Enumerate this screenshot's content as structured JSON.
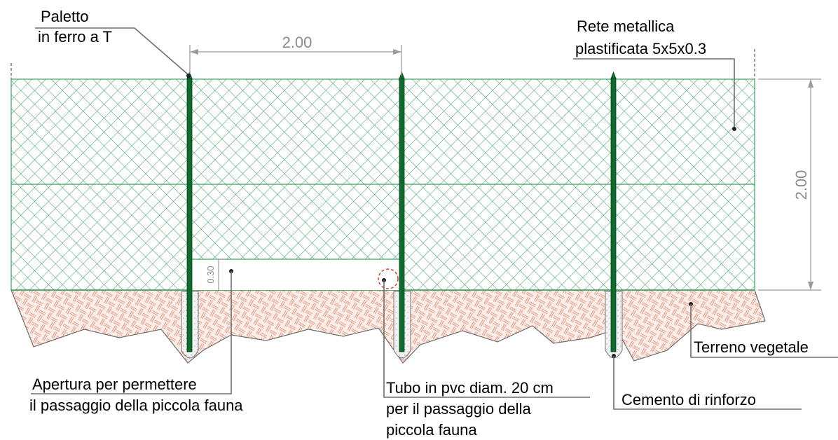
{
  "labels": {
    "post": [
      "Paletto",
      "in ferro a T"
    ],
    "mesh": [
      "Rete metallica",
      "plastificata 5x5x0.3"
    ],
    "opening": [
      "Apertura per permettere",
      "il passaggio della piccola fauna"
    ],
    "pipe": [
      "Tubo in pvc diam. 20 cm",
      "per il passaggio della",
      "piccola fauna"
    ],
    "concrete": "Cemento di rinforzo",
    "soil": "Terreno vegetale"
  },
  "dimensions": {
    "post_spacing": "2.00",
    "fence_height": "2.00",
    "opening_height": "0.30"
  },
  "colors": {
    "mesh": "#2f9a55",
    "mesh_edge": "#3aa060",
    "soil_pattern": "#e07a5f",
    "post": "#0f6a2e",
    "pipe_marker": "#e03030"
  }
}
